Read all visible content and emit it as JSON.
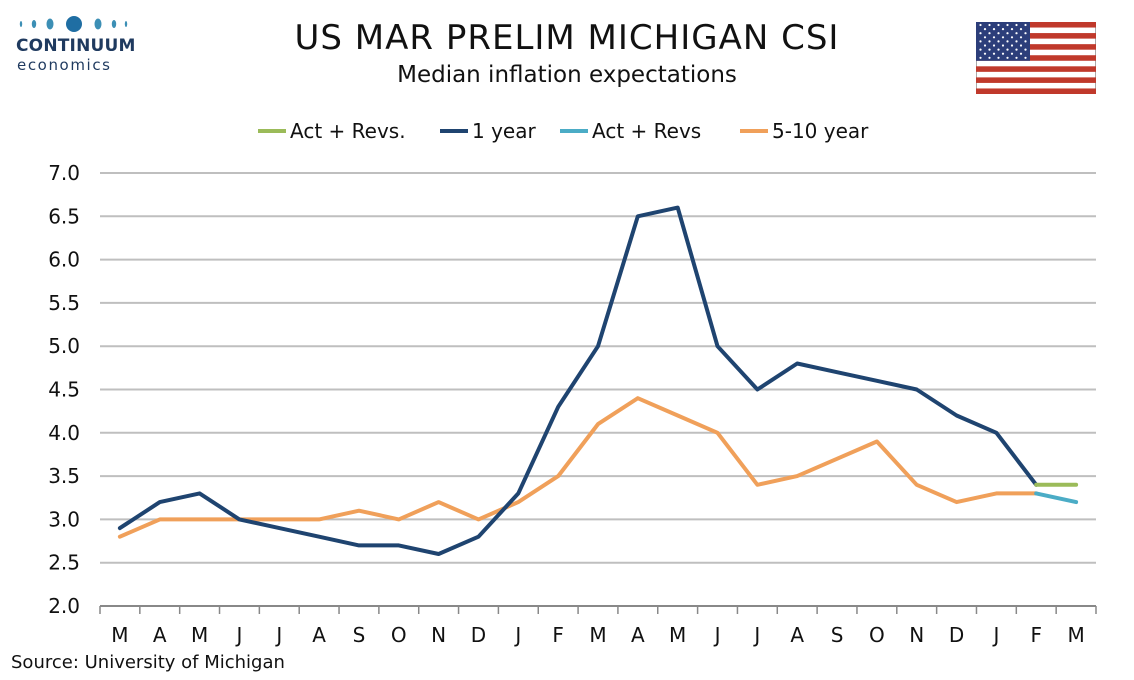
{
  "header": {
    "logo_name": "CONTINUUM",
    "logo_sub": "economics",
    "title": "US MAR PRELIM MICHIGAN CSI",
    "subtitle": "Median inflation expectations"
  },
  "source": "Source: University of Michigan",
  "colors": {
    "one_year": "#1f4470",
    "five_ten_year": "#f0a05a",
    "one_year_rev": "#9bbb59",
    "five_ten_rev": "#4bacc6",
    "grid": "#bfbfbf",
    "axis": "#888888"
  },
  "chart_data": {
    "type": "line",
    "title": "US MAR PRELIM MICHIGAN CSI",
    "subtitle": "Median inflation expectations",
    "xlabel": "",
    "ylabel": "",
    "ylim": [
      2.0,
      7.0
    ],
    "yticks": [
      "7.0",
      "6.5",
      "6.0",
      "5.5",
      "5.0",
      "4.5",
      "4.0",
      "3.5",
      "3.0",
      "2.5",
      "2.0"
    ],
    "categories": [
      "M",
      "A",
      "M",
      "J",
      "J",
      "A",
      "S",
      "O",
      "N",
      "D",
      "J",
      "F",
      "M",
      "A",
      "M",
      "J",
      "J",
      "A",
      "S",
      "O",
      "N",
      "D",
      "J",
      "F",
      "M"
    ],
    "grid": true,
    "legend_position": "top",
    "legend": [
      "Act + Revs.",
      "1 year",
      "Act + Revs",
      "5-10 year"
    ],
    "series": [
      {
        "name": "1 year",
        "color": "#1f4470",
        "values": [
          2.9,
          3.2,
          3.3,
          3.0,
          2.9,
          2.8,
          2.7,
          2.7,
          2.6,
          2.8,
          3.3,
          4.3,
          5.0,
          6.5,
          6.6,
          5.0,
          4.5,
          4.8,
          4.7,
          4.6,
          4.5,
          4.2,
          4.0,
          3.4,
          null
        ]
      },
      {
        "name": "5-10 year",
        "color": "#f0a05a",
        "values": [
          2.8,
          3.0,
          3.0,
          3.0,
          3.0,
          3.0,
          3.1,
          3.0,
          3.2,
          3.0,
          3.2,
          3.5,
          4.1,
          4.4,
          4.2,
          4.0,
          3.4,
          3.5,
          3.7,
          3.9,
          3.4,
          3.2,
          3.3,
          3.3,
          null
        ]
      },
      {
        "name": "Act + Revs.",
        "color": "#9bbb59",
        "values": [
          null,
          null,
          null,
          null,
          null,
          null,
          null,
          null,
          null,
          null,
          null,
          null,
          null,
          null,
          null,
          null,
          null,
          null,
          null,
          null,
          null,
          null,
          null,
          3.4,
          3.4
        ]
      },
      {
        "name": "Act + Revs",
        "color": "#4bacc6",
        "values": [
          null,
          null,
          null,
          null,
          null,
          null,
          null,
          null,
          null,
          null,
          null,
          null,
          null,
          null,
          null,
          null,
          null,
          null,
          null,
          null,
          null,
          null,
          null,
          3.3,
          3.2
        ]
      }
    ]
  }
}
